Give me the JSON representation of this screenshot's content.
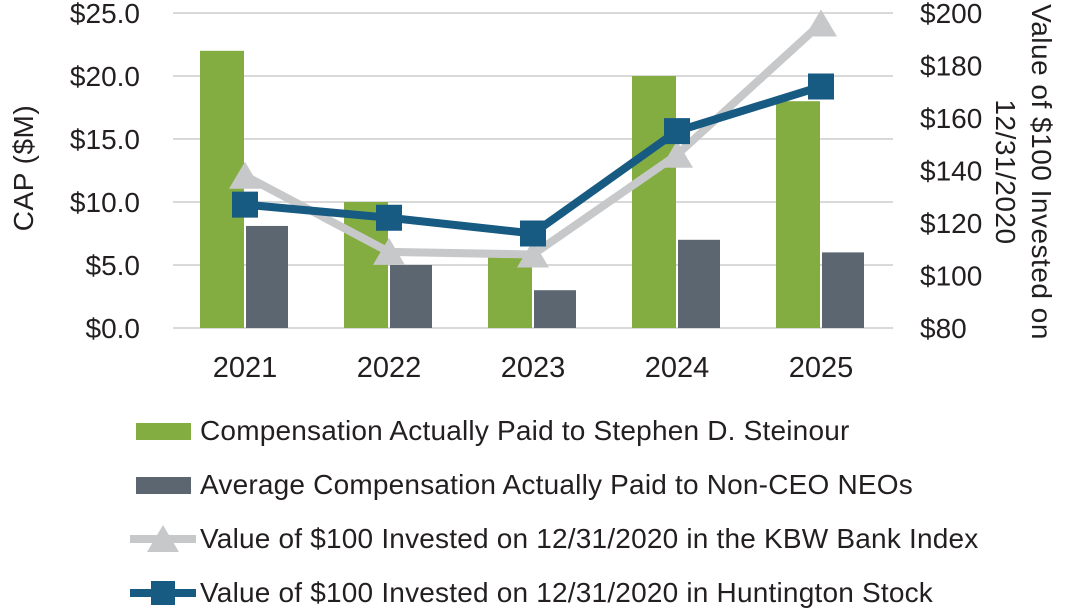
{
  "chart_data": {
    "type": "bar",
    "subtype": "combo-bar-line",
    "categories": [
      "2021",
      "2022",
      "2023",
      "2024",
      "2025"
    ],
    "series": [
      {
        "name": "Compensation Actually Paid to Stephen D. Steinour",
        "type": "bar",
        "axis": "left",
        "color": "#84ad41",
        "values": [
          22.0,
          10.0,
          5.6,
          20.0,
          18.0
        ]
      },
      {
        "name": "Average Compensation Actually Paid to Non-CEO NEOs",
        "type": "bar",
        "axis": "left",
        "color": "#5b6671",
        "values": [
          8.1,
          5.0,
          3.0,
          7.0,
          6.0
        ]
      },
      {
        "name": "Value of $100 Invested on 12/31/2020 in the KBW Bank Index",
        "type": "line",
        "marker": "triangle",
        "axis": "right",
        "color": "#c7c8ca",
        "values": [
          138,
          109,
          108,
          146,
          196
        ]
      },
      {
        "name": "Value of $100 Invested on 12/31/2020 in Huntington Stock",
        "type": "line",
        "marker": "square",
        "axis": "right",
        "color": "#175a82",
        "values": [
          127,
          122,
          116,
          155,
          172
        ]
      }
    ],
    "left_axis": {
      "label": "CAP ($M)",
      "min": 0,
      "max": 25,
      "ticks": [
        "$0.0",
        "$5.0",
        "$10.0",
        "$15.0",
        "$20.0",
        "$25.0"
      ]
    },
    "right_axis": {
      "label_line1": "Value of $100 Invested on",
      "label_line2": "12/31/2020",
      "min": 80,
      "max": 200,
      "ticks": [
        "$80",
        "$100",
        "$120",
        "$140",
        "$160",
        "$180",
        "$200"
      ]
    },
    "grid": true,
    "gridline_color": "#d9d9d9",
    "text_color": "#231f20",
    "legend_position": "bottom"
  }
}
